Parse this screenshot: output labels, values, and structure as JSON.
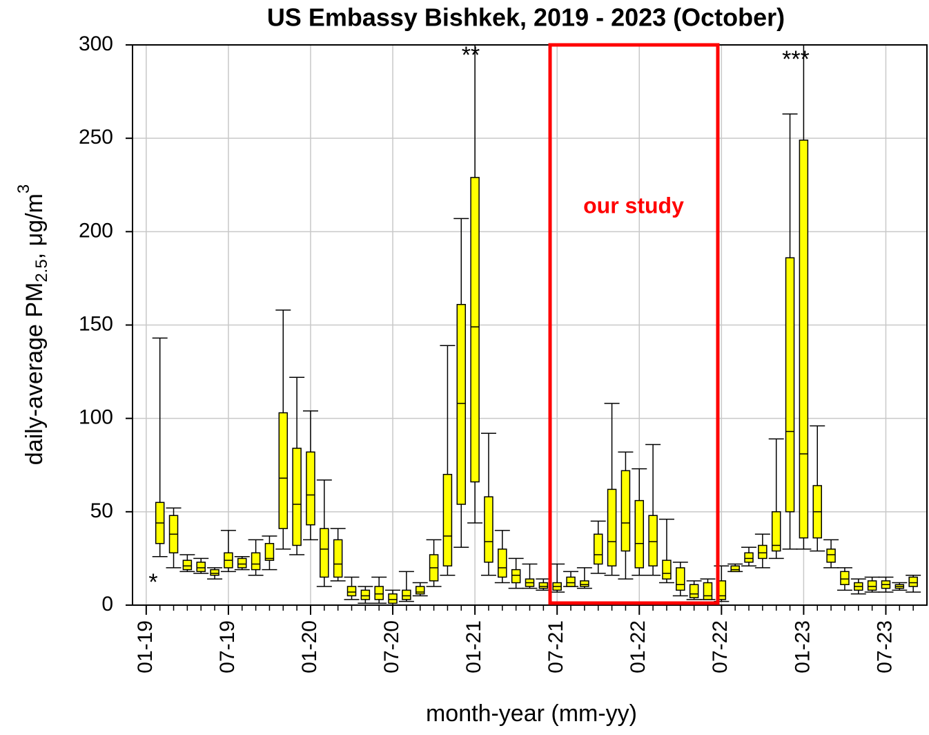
{
  "chart_data": {
    "type": "box",
    "title": "US Embassy Bishkek, 2019 - 2023 (October)",
    "xlabel": "month-year (mm-yy)",
    "ylabel": {
      "text": "daily-average PM",
      "sub": "2.5",
      "unit": ", μg/m",
      "sup": "3"
    },
    "categories": [
      "01-19",
      null,
      null,
      null,
      null,
      null,
      "07-19",
      null,
      null,
      null,
      null,
      null,
      "01-20",
      null,
      null,
      null,
      null,
      null,
      "07-20",
      null,
      null,
      null,
      null,
      null,
      "01-21",
      null,
      null,
      null,
      null,
      null,
      "07-21",
      null,
      null,
      null,
      null,
      null,
      "01-22",
      null,
      null,
      null,
      null,
      null,
      "07-22",
      null,
      null,
      null,
      null,
      null,
      "01-23",
      null,
      null,
      null,
      null,
      null,
      "07-23",
      null,
      null
    ],
    "whisker_low": [
      null,
      26,
      20,
      18,
      17,
      14,
      18,
      19,
      16,
      19,
      30,
      27,
      35,
      10,
      13,
      3,
      1,
      1,
      0,
      2,
      5,
      10,
      16,
      31,
      44,
      16,
      12,
      9,
      9,
      8,
      7,
      10,
      9,
      17,
      16,
      14,
      16,
      16,
      12,
      5,
      3,
      3,
      2,
      18,
      21,
      20,
      25,
      30,
      30,
      29,
      20,
      8,
      6,
      7,
      7,
      8,
      7
    ],
    "q1": [
      null,
      33,
      28,
      19,
      18,
      16,
      20,
      20,
      19,
      24,
      41,
      32,
      43,
      15,
      15,
      5,
      3,
      3,
      1,
      3,
      6,
      13,
      21,
      54,
      66,
      23,
      15,
      12,
      10,
      9,
      8,
      10,
      10,
      22,
      21,
      29,
      20,
      21,
      14,
      8,
      4,
      3,
      3,
      18,
      23,
      25,
      29,
      50,
      36,
      36,
      23,
      11,
      8,
      8,
      9,
      9,
      10
    ],
    "median": [
      null,
      44,
      38,
      21,
      20,
      17,
      24,
      22,
      22,
      25,
      68,
      54,
      59,
      30,
      22,
      7,
      5,
      6,
      3,
      5,
      7,
      20,
      37,
      108,
      149,
      34,
      20,
      16,
      12,
      10,
      10,
      12,
      11,
      27,
      34,
      44,
      33,
      34,
      17,
      11,
      6,
      5,
      5,
      19,
      25,
      28,
      32,
      93,
      81,
      50,
      27,
      14,
      10,
      10,
      11,
      10,
      12
    ],
    "q3": [
      null,
      55,
      48,
      24,
      23,
      19,
      28,
      25,
      28,
      33,
      103,
      84,
      82,
      41,
      35,
      10,
      8,
      10,
      6,
      8,
      10,
      27,
      70,
      161,
      229,
      58,
      30,
      19,
      14,
      12,
      12,
      15,
      13,
      38,
      62,
      72,
      56,
      48,
      24,
      20,
      11,
      12,
      13,
      21,
      28,
      32,
      50,
      186,
      249,
      64,
      30,
      18,
      12,
      13,
      13,
      11,
      15
    ],
    "whisker_high": [
      null,
      143,
      52,
      27,
      25,
      20,
      40,
      26,
      35,
      37,
      158,
      122,
      104,
      67,
      41,
      15,
      10,
      15,
      8,
      18,
      12,
      35,
      139,
      207,
      300,
      92,
      40,
      25,
      22,
      14,
      22,
      18,
      20,
      45,
      108,
      82,
      73,
      86,
      46,
      23,
      13,
      14,
      21,
      22,
      31,
      38,
      89,
      263,
      300,
      96,
      35,
      20,
      14,
      15,
      15,
      12,
      16
    ],
    "color": "#ffff00",
    "ylim": [
      0,
      300
    ],
    "yticks": [
      0,
      50,
      100,
      150,
      200,
      250,
      300
    ],
    "grid": true,
    "annotations": {
      "missing": "*",
      "jan21": "**",
      "jan23": "***",
      "study": "our study"
    }
  }
}
